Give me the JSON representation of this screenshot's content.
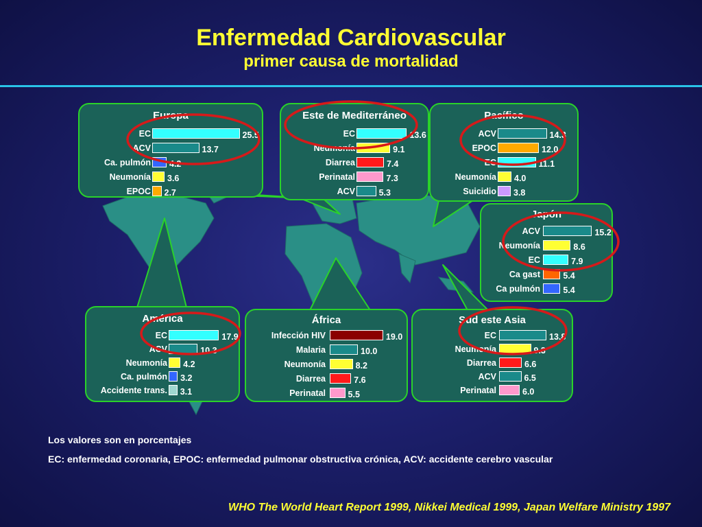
{
  "title": "Enfermedad Cardiovascular",
  "subtitle": "primer causa de mortalidad",
  "notes": {
    "line1": "Los valores son en porcentajes",
    "line2": "EC: enfermedad coronaria, EPOC: enfermedad pulmonar obstructiva crónica, ACV: accidente cerebro vascular"
  },
  "source": "WHO The World Heart Report 1999, Nikkei Medical 1999, Japan Welfare Ministry 1997",
  "colors": {
    "teal": "#1a8a8a",
    "cyan": "#33ffff",
    "yellow": "#ffff33",
    "blue": "#3366ff",
    "orange": "#ffaa00",
    "red": "#ff1a1a",
    "pink": "#ff99cc",
    "purple": "#cc99ff",
    "darkred": "#8b0000",
    "orangered": "#ff6600",
    "lightteal": "#a0d8d0",
    "highlight_ring": "#d61a1a",
    "panel_bg": "#1b6258",
    "panel_border": "#2ad22a"
  },
  "chart_data": [
    {
      "type": "bar",
      "title": "Europa",
      "categories": [
        "EC",
        "ACV",
        "Ca. pulmón",
        "Neumonía",
        "EPOC"
      ],
      "values": [
        25.5,
        13.7,
        4.2,
        3.6,
        2.7
      ],
      "value_labels": [
        "25.5",
        "13.7",
        "4.2",
        "3.6",
        "2.7"
      ],
      "bar_colors": [
        "cyan",
        "teal",
        "blue",
        "yellow",
        "orange"
      ]
    },
    {
      "type": "bar",
      "title": "Este de Mediterráneo",
      "categories": [
        "EC",
        "Neumonía",
        "Diarrea",
        "Perinatal",
        "ACV"
      ],
      "values": [
        13.6,
        9.1,
        7.4,
        7.3,
        5.3
      ],
      "value_labels": [
        "13.6",
        "9.1",
        "7.4",
        "7.3",
        "5.3"
      ],
      "bar_colors": [
        "cyan",
        "yellow",
        "red",
        "pink",
        "teal"
      ]
    },
    {
      "type": "bar",
      "title": "Pacífico",
      "categories": [
        "ACV",
        "EPOC",
        "EC",
        "Neumonía",
        "Suicidio"
      ],
      "values": [
        14.3,
        12.0,
        11.1,
        4.0,
        3.8
      ],
      "value_labels": [
        "14.3",
        "12.0",
        "11.1",
        "4.0",
        "3.8"
      ],
      "bar_colors": [
        "teal",
        "orange",
        "cyan",
        "yellow",
        "purple"
      ]
    },
    {
      "type": "bar",
      "title": "Japón",
      "categories": [
        "ACV",
        "Neumonía",
        "EC",
        "Ca gast",
        "Ca pulmón"
      ],
      "values": [
        15.2,
        8.6,
        7.9,
        5.4,
        5.4
      ],
      "value_labels": [
        "15.2",
        "8.6",
        "7.9",
        "5.4",
        "5.4"
      ],
      "bar_colors": [
        "teal",
        "yellow",
        "cyan",
        "orangered",
        "blue"
      ]
    },
    {
      "type": "bar",
      "title": "América",
      "categories": [
        "EC",
        "ACV",
        "Neumonía",
        "Ca. pulmón",
        "Accidente trans."
      ],
      "values": [
        17.9,
        10.3,
        4.2,
        3.2,
        3.1
      ],
      "value_labels": [
        "17.9",
        "10.3",
        "4.2",
        "3.2",
        "3.1"
      ],
      "bar_colors": [
        "cyan",
        "teal",
        "yellow",
        "blue",
        "lightteal"
      ]
    },
    {
      "type": "bar",
      "title": "África",
      "categories": [
        "Infección HIV",
        "Malaria",
        "Neumonía",
        "Diarrea",
        "Perinatal"
      ],
      "values": [
        19.0,
        10.0,
        8.2,
        7.6,
        5.5
      ],
      "value_labels": [
        "19.0",
        "10.0",
        "8.2",
        "7.6",
        "5.5"
      ],
      "bar_colors": [
        "darkred",
        "teal",
        "yellow",
        "red",
        "pink"
      ]
    },
    {
      "type": "bar",
      "title": "Sud este Asia",
      "categories": [
        "EC",
        "Neumonía",
        "Diarrea",
        "ACV",
        "Perinatal"
      ],
      "values": [
        13.8,
        9.3,
        6.6,
        6.5,
        6.0
      ],
      "value_labels": [
        "13.8",
        "9.3",
        "6.6",
        "6.5",
        "6.0"
      ],
      "bar_colors": [
        "teal",
        "yellow",
        "red",
        "teal",
        "pink"
      ]
    }
  ]
}
